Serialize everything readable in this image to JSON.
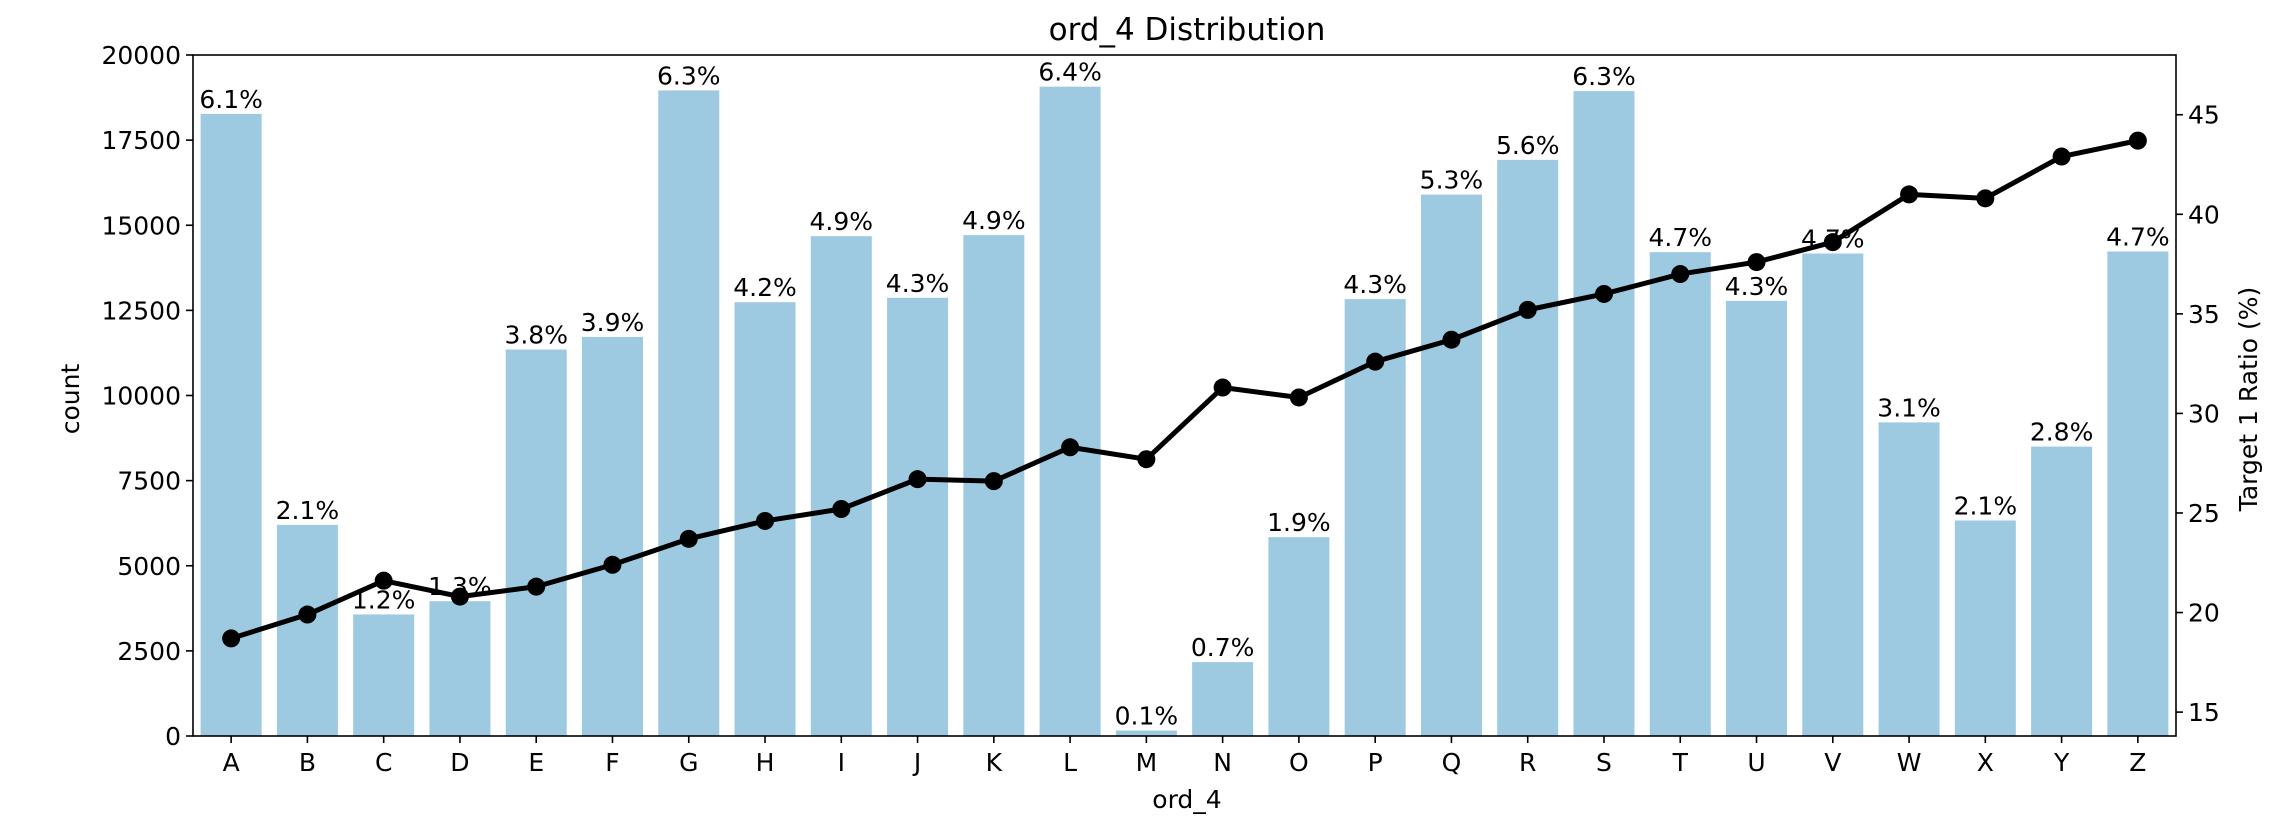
{
  "chart_data": {
    "type": "bar",
    "title": "ord_4 Distribution",
    "xlabel": "ord_4",
    "ylabel": "count",
    "y2label": "Target 1 Ratio (%)",
    "categories": [
      "A",
      "B",
      "C",
      "D",
      "E",
      "F",
      "G",
      "H",
      "I",
      "J",
      "K",
      "L",
      "M",
      "N",
      "O",
      "P",
      "Q",
      "R",
      "S",
      "T",
      "U",
      "V",
      "W",
      "X",
      "Y",
      "Z"
    ],
    "ylim": [
      0,
      20000
    ],
    "yticks": [
      0,
      2500,
      5000,
      7500,
      10000,
      12500,
      15000,
      17500,
      20000
    ],
    "y2lim": [
      13.8,
      48.0
    ],
    "y2ticks": [
      15,
      20,
      25,
      30,
      35,
      40,
      45
    ],
    "grid": false,
    "series": [
      {
        "type": "bar",
        "color": "#9ecae1",
        "values": [
          18270,
          6200,
          3570,
          3960,
          11350,
          11720,
          18960,
          12740,
          14680,
          12870,
          14710,
          19070,
          160,
          2170,
          5840,
          12830,
          15900,
          16920,
          18940,
          14210,
          12780,
          14170,
          9210,
          6330,
          8500,
          14230
        ],
        "labels": [
          "6.1%",
          "2.1%",
          "1.2%",
          "1.3%",
          "3.8%",
          "3.9%",
          "6.3%",
          "4.2%",
          "4.9%",
          "4.3%",
          "4.9%",
          "6.4%",
          "0.1%",
          "0.7%",
          "1.9%",
          "4.3%",
          "5.3%",
          "5.6%",
          "6.3%",
          "4.7%",
          "4.3%",
          "4.7%",
          "3.1%",
          "2.1%",
          "2.8%",
          "4.7%"
        ]
      },
      {
        "type": "line",
        "axis": "right",
        "color": "#000000",
        "values": [
          18.7,
          19.9,
          21.6,
          20.8,
          21.3,
          22.4,
          23.7,
          24.6,
          25.2,
          26.7,
          26.6,
          28.3,
          27.7,
          31.3,
          30.8,
          32.6,
          33.7,
          35.2,
          36.0,
          37.0,
          37.6,
          38.6,
          41.0,
          40.8,
          42.9,
          43.7
        ]
      }
    ]
  }
}
